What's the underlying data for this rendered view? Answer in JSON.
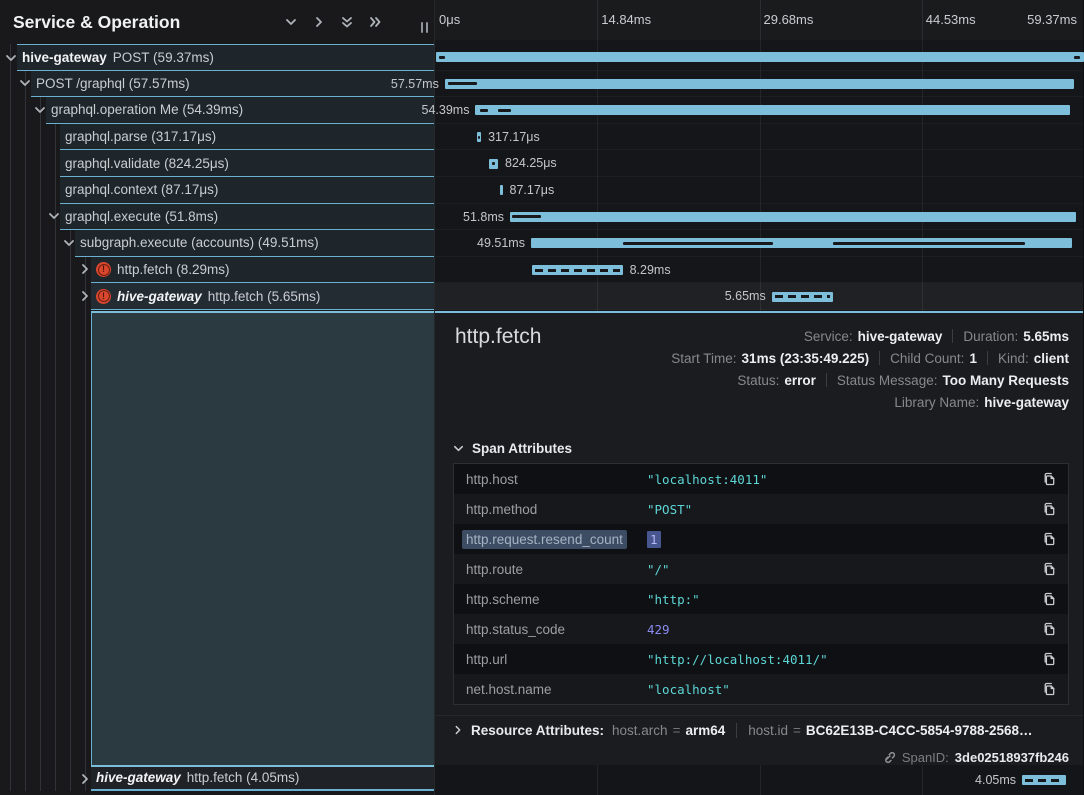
{
  "left_panel": {
    "header": {
      "title": "Service & Operation",
      "icons": [
        "chevron-down-icon",
        "chevron-right-icon",
        "double-chevron-down-icon",
        "double-chevron-right-icon"
      ]
    },
    "tree_rows": [
      {
        "depth": 0,
        "chevron": "down",
        "service": "hive-gateway",
        "service_style": "bold",
        "name": "POST (59.37ms)"
      },
      {
        "depth": 1,
        "chevron": "down",
        "name": "POST /graphql (57.57ms)"
      },
      {
        "depth": 2,
        "chevron": "down",
        "name": "graphql.operation Me (54.39ms)"
      },
      {
        "depth": 3,
        "name": "graphql.parse (317.17μs)"
      },
      {
        "depth": 3,
        "name": "graphql.validate (824.25μs)"
      },
      {
        "depth": 3,
        "name": "graphql.context (87.17μs)"
      },
      {
        "depth": 3,
        "chevron": "down",
        "name": "graphql.execute (51.8ms)"
      },
      {
        "depth": 4,
        "chevron": "down",
        "name": "subgraph.execute (accounts) (49.51ms)"
      },
      {
        "depth": 5,
        "chevron": "right",
        "error": true,
        "name": "http.fetch (8.29ms)"
      },
      {
        "depth": 5,
        "chevron": "right",
        "error": true,
        "service": "hive-gateway",
        "service_style": "bold-italic",
        "name": "http.fetch (5.65ms)",
        "selected": true
      }
    ],
    "footer_row": {
      "depth": 5,
      "chevron": "right",
      "service": "hive-gateway",
      "service_style": "bold-italic",
      "name": "http.fetch (4.05ms)"
    }
  },
  "timeline": {
    "total_ms": 59.37,
    "ticks": [
      "0μs",
      "14.84ms",
      "29.68ms",
      "44.53ms",
      "59.37ms"
    ],
    "rows": [
      {
        "start": 0.05,
        "dur": 59.3,
        "marks": [
          [
            0.3,
            0.45
          ],
          [
            58.4,
            0.5
          ]
        ]
      },
      {
        "start": 0.9,
        "dur": 57.57,
        "label": "57.57ms",
        "side": "left",
        "marks": [
          [
            0.3,
            2.6
          ]
        ]
      },
      {
        "start": 3.7,
        "dur": 54.39,
        "label": "54.39ms",
        "side": "left",
        "marks": [
          [
            0.4,
            0.75
          ],
          [
            2.1,
            1.15
          ]
        ]
      },
      {
        "start": 3.85,
        "dur": 0.317,
        "label": "317.17μs",
        "side": "right",
        "marks": [
          [
            0.08,
            0.15
          ]
        ],
        "min_w": 4
      },
      {
        "start": 4.94,
        "dur": 0.824,
        "label": "824.25μs",
        "side": "right",
        "marks": [
          [
            0.25,
            0.3
          ]
        ]
      },
      {
        "start": 5.95,
        "dur": 0.087,
        "label": "87.17μs",
        "side": "right",
        "min_w": 2.5
      },
      {
        "start": 6.86,
        "dur": 51.8,
        "label": "51.8ms",
        "side": "left",
        "marks": [
          [
            0.2,
            2.6
          ]
        ]
      },
      {
        "start": 8.78,
        "dur": 49.51,
        "label": "49.51ms",
        "side": "left",
        "marks": [
          [
            8.4,
            13.7
          ],
          [
            27.6,
            17.6
          ]
        ]
      },
      {
        "start": 8.87,
        "dur": 8.29,
        "label": "8.29ms",
        "side": "right",
        "dashed": true
      },
      {
        "start": 30.8,
        "dur": 5.65,
        "label": "5.65ms",
        "side": "left",
        "dashed": true,
        "selected": true
      }
    ],
    "footer_row": {
      "start": 53.7,
      "dur": 4.05,
      "label": "4.05ms",
      "side": "left",
      "dashed": true
    }
  },
  "detail": {
    "title": "http.fetch",
    "meta_lines": [
      [
        {
          "label": "Service:",
          "value": "hive-gateway"
        },
        {
          "label": "Duration:",
          "value": "5.65ms"
        }
      ],
      [
        {
          "label": "Start Time:",
          "value": "31ms (23:35:49.225)"
        },
        {
          "label": "Child Count:",
          "value": "1"
        },
        {
          "label": "Kind:",
          "value": "client"
        }
      ],
      [
        {
          "label": "Status:",
          "value": "error"
        },
        {
          "label": "Status Message:",
          "value": "Too Many Requests"
        }
      ],
      [
        {
          "label": "Library Name:",
          "value": "hive-gateway"
        }
      ]
    ],
    "attributes": {
      "section_title": "Span Attributes",
      "rows": [
        {
          "key": "http.host",
          "value": "\"localhost:4011\"",
          "type": "string"
        },
        {
          "key": "http.method",
          "value": "\"POST\"",
          "type": "string"
        },
        {
          "key": "http.request.resend_count",
          "value": "1",
          "type": "number",
          "selected": true
        },
        {
          "key": "http.route",
          "value": "\"/\"",
          "type": "string"
        },
        {
          "key": "http.scheme",
          "value": "\"http:\"",
          "type": "string"
        },
        {
          "key": "http.status_code",
          "value": "429",
          "type": "number"
        },
        {
          "key": "http.url",
          "value": "\"http://localhost:4011/\"",
          "type": "string"
        },
        {
          "key": "net.host.name",
          "value": "\"localhost\"",
          "type": "string"
        }
      ]
    },
    "resource": {
      "label": "Resource Attributes:",
      "items": [
        {
          "key": "host.arch",
          "value": "arm64"
        },
        {
          "key": "host.id",
          "value": "BC62E13B-C4CC-5854-9788-2568…"
        }
      ]
    },
    "span_id": {
      "label": "SpanID:",
      "value": "3de02518937fb246"
    }
  },
  "colors": {
    "bar": "#7dbeda",
    "row_border": "#69b0d1",
    "selection_teal": "#2b3a41",
    "value_string": "#5ed6d6",
    "value_number": "#8b8bf2",
    "error": "#d9482e"
  }
}
